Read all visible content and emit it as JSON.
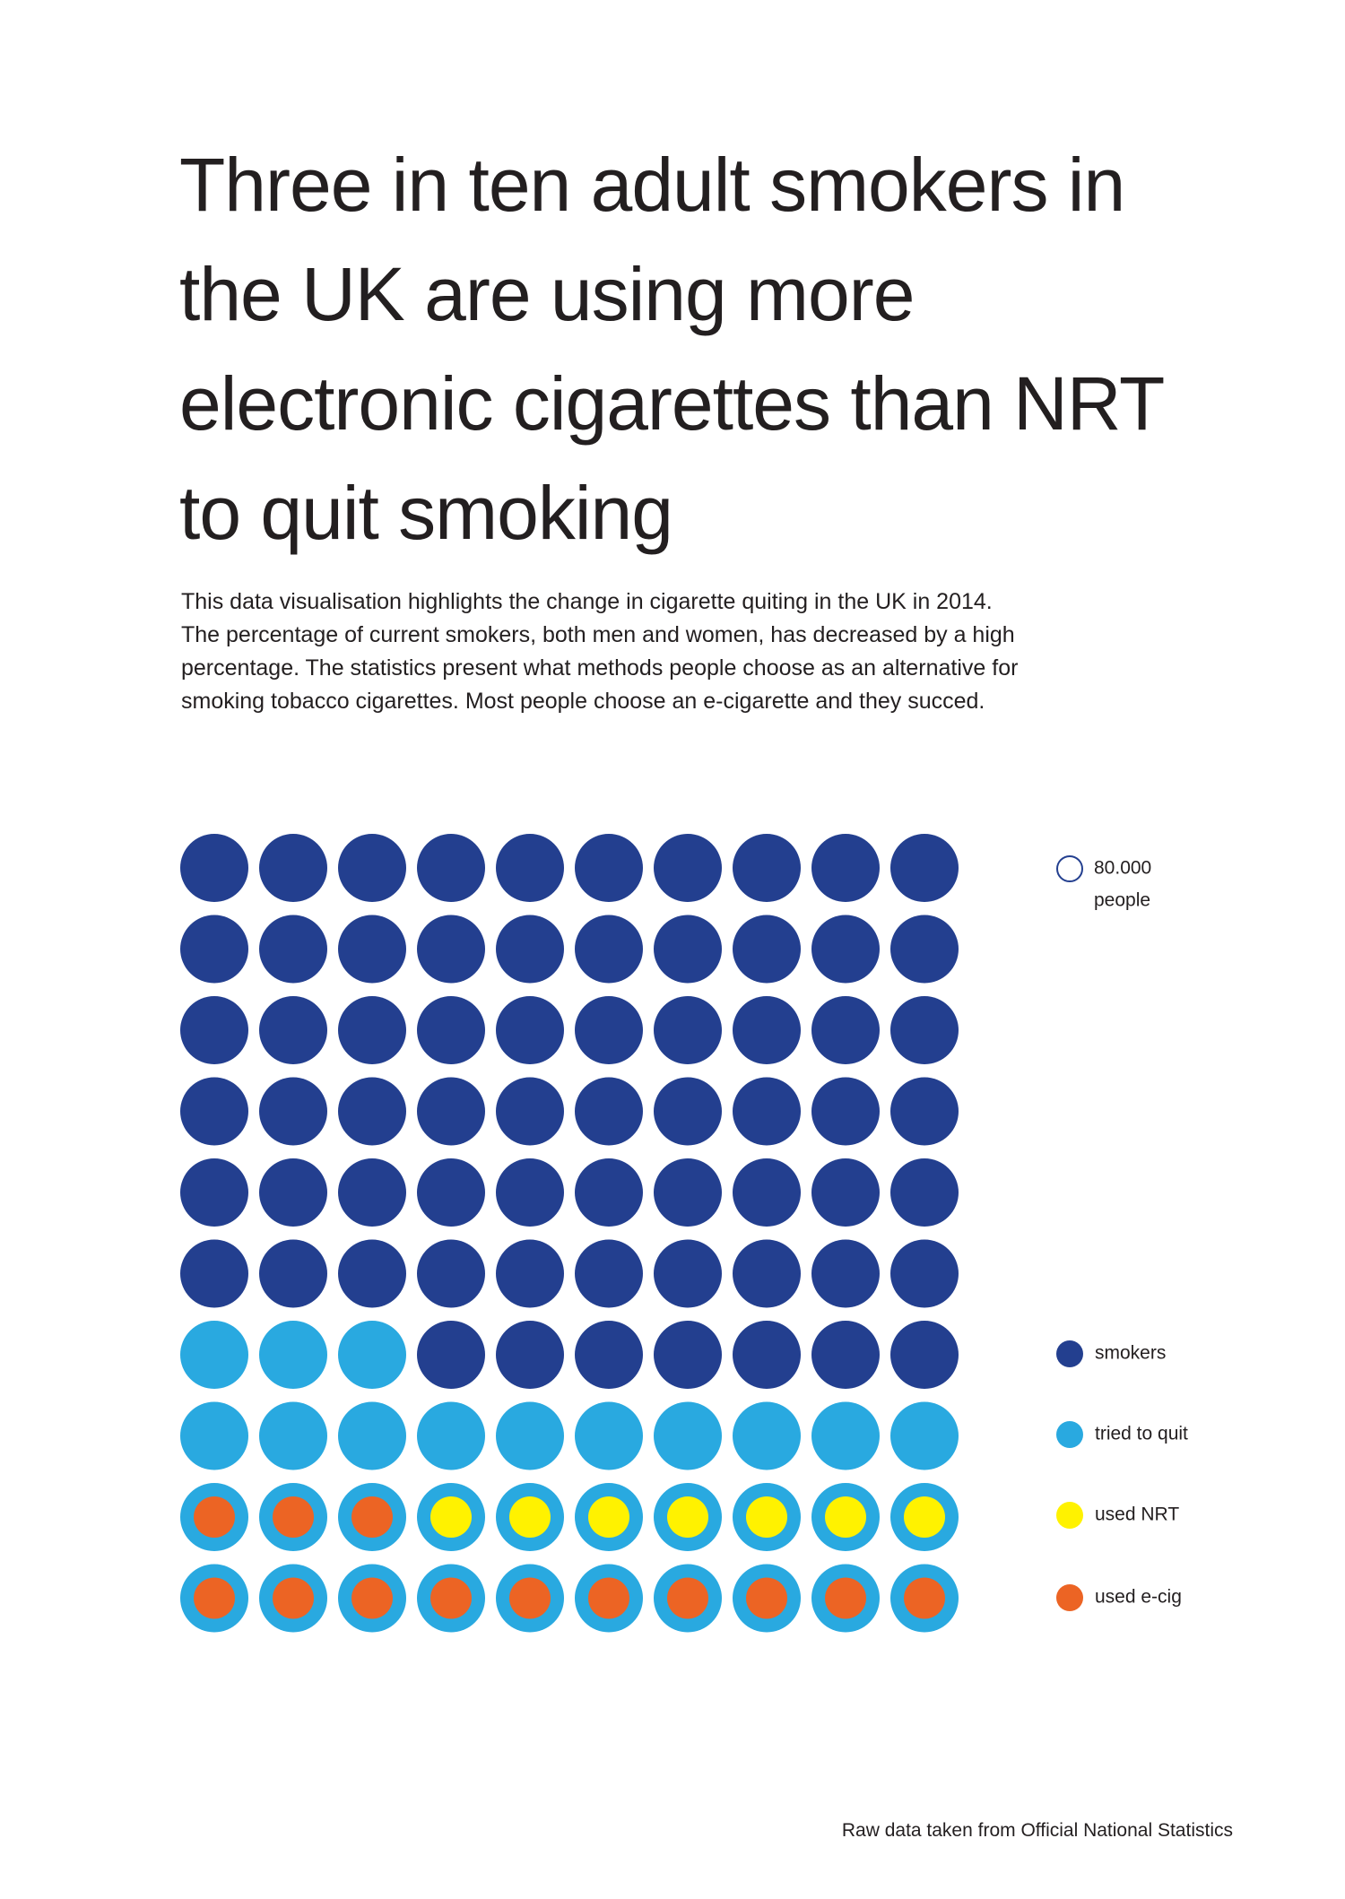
{
  "chart_data": {
    "type": "waffle",
    "title": "Three in ten adult smokers in the UK are using more electronic cigarettes than NRT to quit smoking",
    "subtitle": "This data visualisation highlights the change in cigarette quiting in the UK in 2014. The percentage of current smokers, both men and women, has decreased by a high percentage. The statistics present what methods people choose as an alternative for smoking tobacco cigarettes. Most people choose an e-cigarette and they succed.",
    "unit": {
      "value": 80000,
      "label": "80.000",
      "text": "people"
    },
    "series": [
      {
        "name": "smokers",
        "color": "#233f8f",
        "value": 67,
        "layer": "outer"
      },
      {
        "name": "tried to quit",
        "color": "#29a9e0",
        "value": 33,
        "layer": "outer"
      },
      {
        "name": "used NRT",
        "color": "#fff200",
        "value": 7,
        "layer": "inner"
      },
      {
        "name": "used e-cig",
        "color": "#ec6424",
        "value": 13,
        "layer": "inner"
      }
    ],
    "source": "Raw data taken from Official National Statistics"
  }
}
